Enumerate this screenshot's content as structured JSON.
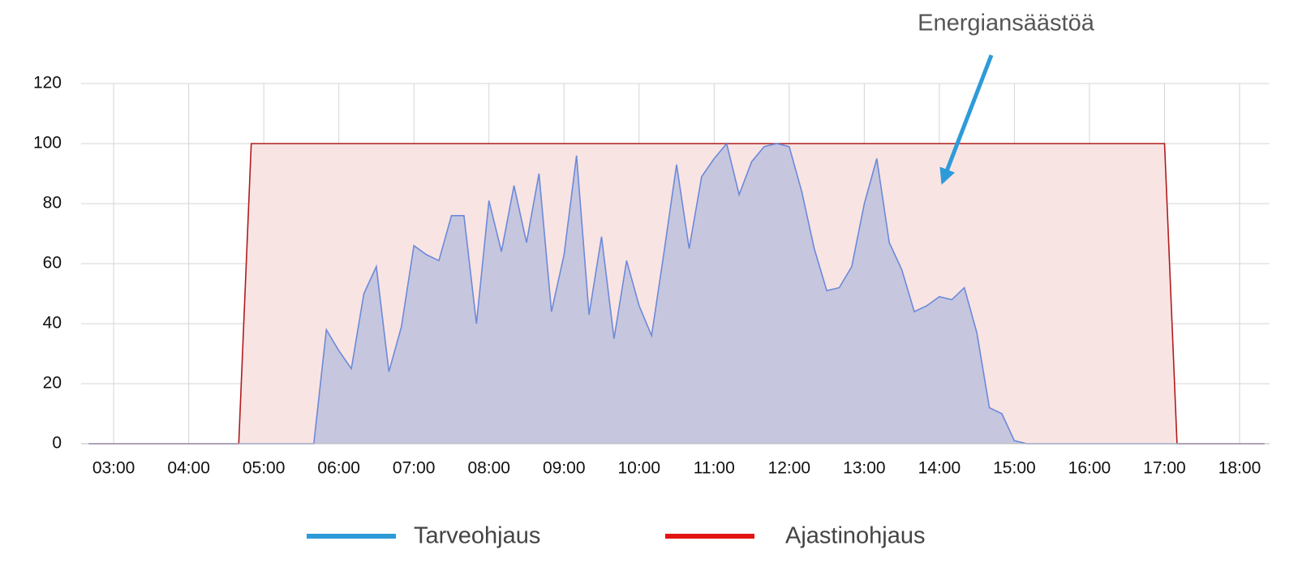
{
  "chart_data": {
    "type": "area",
    "annotation": "Energiansäästöä",
    "x": [
      160,
      280,
      290,
      340,
      350,
      360,
      370,
      380,
      390,
      400,
      410,
      420,
      430,
      440,
      450,
      460,
      470,
      480,
      490,
      500,
      510,
      520,
      530,
      540,
      550,
      560,
      570,
      580,
      590,
      600,
      610,
      620,
      630,
      640,
      650,
      660,
      670,
      680,
      690,
      700,
      710,
      720,
      730,
      740,
      750,
      760,
      770,
      780,
      790,
      800,
      810,
      820,
      830,
      840,
      850,
      860,
      870,
      880,
      890,
      900,
      910,
      1020,
      1030,
      1100
    ],
    "series": [
      {
        "name": "Ajastinohjaus",
        "color": "#e31414",
        "line_color": "#b01c1c",
        "fill_color": "#f9e4e4",
        "values": [
          0,
          0,
          100,
          100,
          100,
          100,
          100,
          100,
          100,
          100,
          100,
          100,
          100,
          100,
          100,
          100,
          100,
          100,
          100,
          100,
          100,
          100,
          100,
          100,
          100,
          100,
          100,
          100,
          100,
          100,
          100,
          100,
          100,
          100,
          100,
          100,
          100,
          100,
          100,
          100,
          100,
          100,
          100,
          100,
          100,
          100,
          100,
          100,
          100,
          100,
          100,
          100,
          100,
          100,
          100,
          100,
          100,
          100,
          100,
          100,
          100,
          100,
          0,
          0
        ]
      },
      {
        "name": "Tarveohjaus",
        "color": "#2e9bd9",
        "line_color": "#6b8ad8",
        "fill_color": "rgba(180,188,222,0.75)",
        "values": [
          0,
          0,
          0,
          0,
          38,
          31,
          25,
          50,
          59,
          24,
          39,
          66,
          63,
          61,
          76,
          76,
          40,
          81,
          64,
          86,
          67,
          90,
          44,
          63,
          96,
          43,
          69,
          35,
          61,
          46,
          36,
          64,
          93,
          65,
          89,
          95,
          100,
          83,
          94,
          99,
          100,
          99,
          84,
          65,
          51,
          52,
          59,
          80,
          95,
          67,
          58,
          44,
          46,
          49,
          48,
          52,
          37,
          12,
          10,
          1,
          0,
          0,
          0,
          0
        ]
      }
    ],
    "xlim": [
      154,
      1104
    ],
    "xticks": [
      {
        "value": 180,
        "label": "03:00"
      },
      {
        "value": 240,
        "label": "04:00"
      },
      {
        "value": 300,
        "label": "05:00"
      },
      {
        "value": 360,
        "label": "06:00"
      },
      {
        "value": 420,
        "label": "07:00"
      },
      {
        "value": 480,
        "label": "08:00"
      },
      {
        "value": 540,
        "label": "09:00"
      },
      {
        "value": 600,
        "label": "10:00"
      },
      {
        "value": 660,
        "label": "11:00"
      },
      {
        "value": 720,
        "label": "12:00"
      },
      {
        "value": 780,
        "label": "13:00"
      },
      {
        "value": 840,
        "label": "14:00"
      },
      {
        "value": 900,
        "label": "15:00"
      },
      {
        "value": 960,
        "label": "16:00"
      },
      {
        "value": 1020,
        "label": "17:00"
      },
      {
        "value": 1080,
        "label": "18:00"
      }
    ],
    "ylim": [
      0,
      120
    ],
    "yticks": [
      0,
      20,
      40,
      60,
      80,
      100,
      120
    ],
    "grid": true
  }
}
